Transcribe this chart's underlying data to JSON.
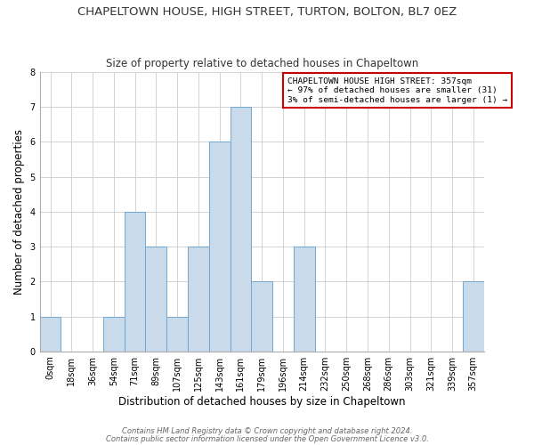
{
  "title": "CHAPELTOWN HOUSE, HIGH STREET, TURTON, BOLTON, BL7 0EZ",
  "subtitle": "Size of property relative to detached houses in Chapeltown",
  "xlabel": "Distribution of detached houses by size in Chapeltown",
  "ylabel": "Number of detached properties",
  "bar_labels": [
    "0sqm",
    "18sqm",
    "36sqm",
    "54sqm",
    "71sqm",
    "89sqm",
    "107sqm",
    "125sqm",
    "143sqm",
    "161sqm",
    "179sqm",
    "196sqm",
    "214sqm",
    "232sqm",
    "250sqm",
    "268sqm",
    "286sqm",
    "303sqm",
    "321sqm",
    "339sqm",
    "357sqm"
  ],
  "bar_values": [
    1,
    0,
    0,
    1,
    4,
    3,
    1,
    3,
    6,
    7,
    2,
    0,
    3,
    0,
    0,
    0,
    0,
    0,
    0,
    0,
    2
  ],
  "bar_color": "#c9daea",
  "bar_edge_color": "#6fa8d0",
  "ylim": [
    0,
    8
  ],
  "yticks": [
    0,
    1,
    2,
    3,
    4,
    5,
    6,
    7,
    8
  ],
  "annotation_title": "CHAPELTOWN HOUSE HIGH STREET: 357sqm",
  "annotation_line1": "← 97% of detached houses are smaller (31)",
  "annotation_line2": "3% of semi-detached houses are larger (1) →",
  "annotation_box_color": "#ffffff",
  "annotation_box_edge_color": "#cc0000",
  "footnote1": "Contains HM Land Registry data © Crown copyright and database right 2024.",
  "footnote2": "Contains public sector information licensed under the Open Government Licence v3.0.",
  "background_color": "#ffffff",
  "grid_color": "#cccccc",
  "title_fontsize": 9.5,
  "subtitle_fontsize": 8.5,
  "axis_label_fontsize": 8.5,
  "tick_fontsize": 7,
  "footnote_fontsize": 6
}
